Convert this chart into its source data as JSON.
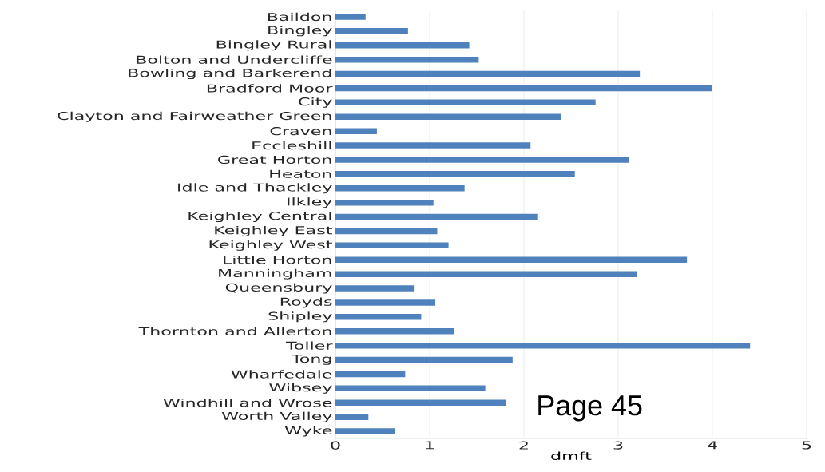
{
  "chart_data": {
    "type": "bar",
    "orientation": "horizontal",
    "xlabel": "dmft",
    "color": "#4f81bd",
    "categories": [
      "Baildon",
      "Bingley",
      "Bingley Rural",
      "Bolton and Undercliffe",
      "Bowling and Barkerend",
      "Bradford Moor",
      "City",
      "Clayton and Fairweather Green",
      "Craven",
      "Eccleshill",
      "Great Horton",
      "Heaton",
      "Idle and Thackley",
      "Ilkley",
      "Keighley Central",
      "Keighley East",
      "Keighley West",
      "Little Horton",
      "Manningham",
      "Queensbury",
      "Royds",
      "Shipley",
      "Thornton and Allerton",
      "Toller",
      "Tong",
      "Wharfedale",
      "Wibsey",
      "Windhill and Wrose",
      "Worth Valley",
      "Wyke"
    ],
    "values": [
      0.32,
      0.77,
      1.42,
      1.52,
      3.23,
      4.0,
      2.76,
      2.39,
      0.44,
      2.07,
      3.11,
      2.54,
      1.37,
      1.04,
      2.15,
      1.08,
      1.2,
      3.73,
      3.2,
      0.84,
      1.06,
      0.91,
      1.26,
      4.4,
      1.88,
      0.74,
      1.59,
      1.81,
      0.35,
      0.63
    ],
    "xlim": [
      0,
      5
    ],
    "xticks": [
      0,
      1,
      2,
      3,
      4,
      5
    ],
    "grid": "x",
    "annotations": [
      "Page 45"
    ]
  }
}
